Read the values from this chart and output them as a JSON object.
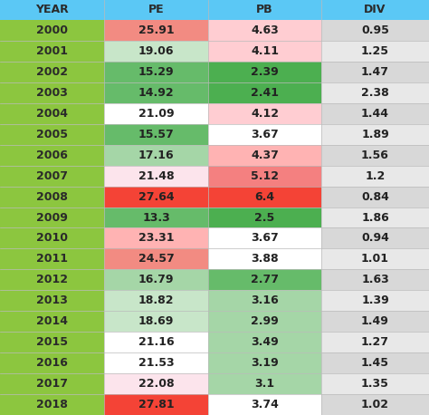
{
  "years": [
    "2000",
    "2001",
    "2002",
    "2003",
    "2004",
    "2005",
    "2006",
    "2007",
    "2008",
    "2009",
    "2010",
    "2011",
    "2012",
    "2013",
    "2014",
    "2015",
    "2016",
    "2017",
    "2018"
  ],
  "pe": [
    25.91,
    19.06,
    15.29,
    14.92,
    21.09,
    15.57,
    17.16,
    21.48,
    27.64,
    13.3,
    23.31,
    24.57,
    16.79,
    18.82,
    18.69,
    21.16,
    21.53,
    22.08,
    27.81
  ],
  "pb": [
    4.63,
    4.11,
    2.39,
    2.41,
    4.12,
    3.67,
    4.37,
    5.12,
    6.4,
    2.5,
    3.67,
    3.88,
    2.77,
    3.16,
    2.99,
    3.49,
    3.19,
    3.1,
    3.74
  ],
  "div": [
    0.95,
    1.25,
    1.47,
    2.38,
    1.44,
    1.89,
    1.56,
    1.2,
    0.84,
    1.86,
    0.94,
    1.01,
    1.63,
    1.39,
    1.49,
    1.27,
    1.45,
    1.35,
    1.02
  ],
  "pe_colors": [
    "#f28b82",
    "#c8e6c9",
    "#66bb6a",
    "#66bb6a",
    "#ffffff",
    "#66bb6a",
    "#a5d6a7",
    "#fce4ec",
    "#f44336",
    "#66bb6a",
    "#ffb3b3",
    "#f28b82",
    "#a5d6a7",
    "#c8e6c9",
    "#c8e6c9",
    "#ffffff",
    "#ffffff",
    "#fce4ec",
    "#f44336"
  ],
  "pb_colors": [
    "#ffcdd2",
    "#ffcdd2",
    "#4caf50",
    "#4caf50",
    "#ffcdd2",
    "#ffffff",
    "#ffb3b3",
    "#f48080",
    "#f44336",
    "#4caf50",
    "#ffffff",
    "#ffffff",
    "#66bb6a",
    "#a5d6a7",
    "#a5d6a7",
    "#a5d6a7",
    "#a5d6a7",
    "#a5d6a7",
    "#ffffff"
  ],
  "div_colors": [
    "#e8e8e8",
    "#e8e8e8",
    "#e8e8e8",
    "#e8e8e8",
    "#e8e8e8",
    "#e8e8e8",
    "#e8e8e8",
    "#e8e8e8",
    "#e8e8e8",
    "#e8e8e8",
    "#e8e8e8",
    "#e8e8e8",
    "#e8e8e8",
    "#e8e8e8",
    "#e8e8e8",
    "#e8e8e8",
    "#e8e8e8",
    "#e8e8e8",
    "#e8e8e8"
  ],
  "header_bg": "#5bc8f5",
  "year_bg": "#8cc63f",
  "row_bg_even": "#d8d8d8",
  "row_bg_odd": "#e8e8e8",
  "header_text_color": "#2a2a2a",
  "year_text_color": "#2a2a2a",
  "cell_text_color": "#222222",
  "header_fontsize": 9,
  "cell_fontsize": 9,
  "year_fontsize": 9,
  "fig_width": 4.74,
  "fig_height": 4.58,
  "dpi": 100
}
